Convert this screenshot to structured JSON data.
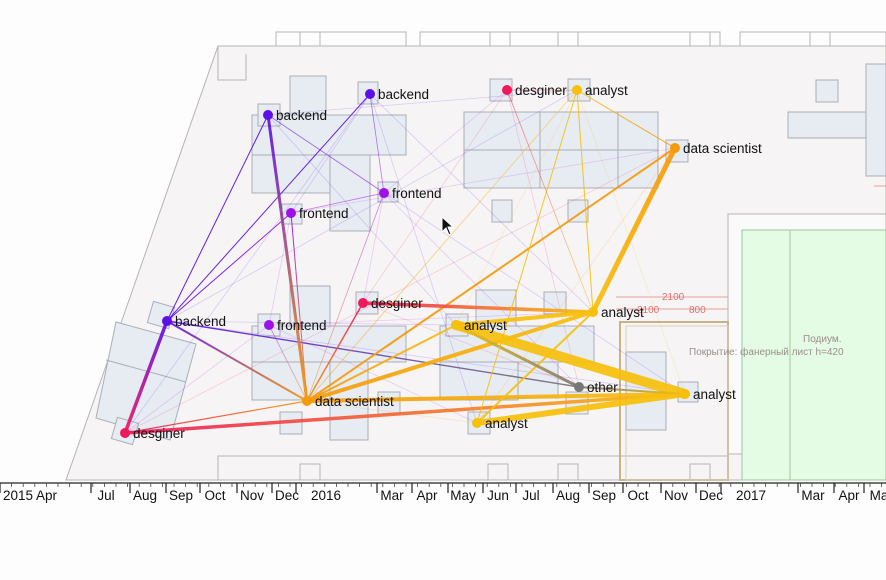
{
  "nodes": [
    {
      "id": "n1",
      "label": "backend",
      "color": "#5b10e8"
    },
    {
      "id": "n2",
      "label": "backend",
      "color": "#5b10e8"
    },
    {
      "id": "n3",
      "label": "frontend",
      "color": "#a010e8"
    },
    {
      "id": "n4",
      "label": "frontend",
      "color": "#a010e8"
    },
    {
      "id": "n5",
      "label": "backend",
      "color": "#5b10e8"
    },
    {
      "id": "n6",
      "label": "frontend",
      "color": "#a010e8"
    },
    {
      "id": "n7",
      "label": "desginer",
      "color": "#f0185c"
    },
    {
      "id": "n8",
      "label": "desginer",
      "color": "#f0185c"
    },
    {
      "id": "n9",
      "label": "analyst",
      "color": "#f7c00c"
    },
    {
      "id": "n10",
      "label": "data scientist",
      "color": "#f59a0c"
    },
    {
      "id": "n11",
      "label": "desginer",
      "color": "#f0185c"
    },
    {
      "id": "n12",
      "label": "analyst",
      "color": "#f7c00c"
    },
    {
      "id": "n13",
      "label": "analyst",
      "color": "#f7c00c"
    },
    {
      "id": "n14",
      "label": "data scientist",
      "color": "#f59a0c"
    },
    {
      "id": "n15",
      "label": "other",
      "color": "#777777"
    },
    {
      "id": "n16",
      "label": "analyst",
      "color": "#f7c00c"
    },
    {
      "id": "n17",
      "label": "analyst",
      "color": "#f7c00c"
    }
  ],
  "edges": [
    {
      "source": "n8",
      "target": "n5",
      "weight": 3.5
    },
    {
      "source": "n8",
      "target": "n17",
      "weight": 3.5
    },
    {
      "source": "n8",
      "target": "n14",
      "weight": 1.2
    },
    {
      "source": "n5",
      "target": "n14",
      "weight": 2
    },
    {
      "source": "n5",
      "target": "n15",
      "weight": 1.4
    },
    {
      "source": "n5",
      "target": "n1",
      "weight": 1
    },
    {
      "source": "n5",
      "target": "n2",
      "weight": 1
    },
    {
      "source": "n5",
      "target": "n4",
      "weight": 1
    },
    {
      "source": "n1",
      "target": "n14",
      "weight": 3
    },
    {
      "source": "n14",
      "target": "n12",
      "weight": 4
    },
    {
      "source": "n14",
      "target": "n11",
      "weight": 1.5
    },
    {
      "source": "n14",
      "target": "n17",
      "weight": 4
    },
    {
      "source": "n14",
      "target": "n13",
      "weight": 2
    },
    {
      "source": "n14",
      "target": "n10",
      "weight": 2
    },
    {
      "source": "n14",
      "target": "n4",
      "weight": 1
    },
    {
      "source": "n11",
      "target": "n12",
      "weight": 3.5
    },
    {
      "source": "n12",
      "target": "n10",
      "weight": 5
    },
    {
      "source": "n12",
      "target": "n13",
      "weight": 4
    },
    {
      "source": "n12",
      "target": "n16",
      "weight": 2
    },
    {
      "source": "n12",
      "target": "n9",
      "weight": 1
    },
    {
      "source": "n13",
      "target": "n17",
      "weight": 10
    },
    {
      "source": "n13",
      "target": "n15",
      "weight": 3
    },
    {
      "source": "n16",
      "target": "n17",
      "weight": 6
    },
    {
      "source": "n16",
      "target": "n9",
      "weight": 1
    },
    {
      "source": "n17",
      "target": "n15",
      "weight": 2
    },
    {
      "source": "n9",
      "target": "n10",
      "weight": 1
    },
    {
      "source": "n9",
      "target": "n7",
      "weight": 0.8
    },
    {
      "source": "n9",
      "target": "n14",
      "weight": 0.8
    },
    {
      "source": "n2",
      "target": "n3",
      "weight": 0.8
    },
    {
      "source": "n1",
      "target": "n3",
      "weight": 0.8
    },
    {
      "source": "n4",
      "target": "n3",
      "weight": 0.8
    },
    {
      "source": "n3",
      "target": "n14",
      "weight": 0.8
    },
    {
      "source": "n7",
      "target": "n12",
      "weight": 0.8
    },
    {
      "source": "n6",
      "target": "n14",
      "weight": 0.8
    }
  ],
  "timeline": {
    "ticks": [
      "2015 Apr",
      "Jul",
      "Aug",
      "Sep",
      "Oct",
      "Nov",
      "Dec",
      "2016",
      "Mar",
      "Apr",
      "May",
      "Jun",
      "Jul",
      "Aug",
      "Sep",
      "Oct",
      "Nov",
      "Dec",
      "2017",
      "Mar",
      "Apr",
      "Ma"
    ]
  },
  "floorplan": {
    "annotations": [
      "2100",
      "2100",
      "800",
      "Подиум.",
      "Покрытие: фанерный лист h=420"
    ]
  }
}
